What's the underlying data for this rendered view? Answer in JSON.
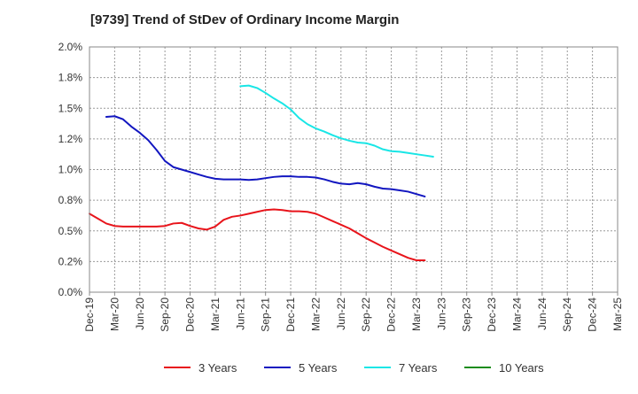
{
  "chart_data": {
    "type": "line",
    "title": "[9739]  Trend of StDev of Ordinary Income Margin",
    "xlabel": "",
    "ylabel": "",
    "ylim": [
      0,
      2.0
    ],
    "y_ticks": [
      "0.0%",
      "0.2%",
      "0.5%",
      "0.8%",
      "1.0%",
      "1.2%",
      "1.5%",
      "1.8%",
      "2.0%"
    ],
    "y_tick_values": [
      0,
      0.25,
      0.5,
      0.75,
      1.0,
      1.25,
      1.5,
      1.75,
      2.0
    ],
    "x_ticks": [
      "Dec-19",
      "Mar-20",
      "Jun-20",
      "Sep-20",
      "Dec-20",
      "Mar-21",
      "Jun-21",
      "Sep-21",
      "Dec-21",
      "Mar-22",
      "Jun-22",
      "Sep-22",
      "Dec-22",
      "Mar-23",
      "Jun-23",
      "Sep-23",
      "Dec-23",
      "Mar-24",
      "Jun-24",
      "Sep-24",
      "Dec-24",
      "Mar-25"
    ],
    "grid": true,
    "legend_position": "bottom",
    "series": [
      {
        "name": "3 Years",
        "color": "#e8141b",
        "start_index": 0,
        "values": [
          0.64,
          0.6,
          0.56,
          0.54,
          0.535,
          0.535,
          0.535,
          0.535,
          0.535,
          0.54,
          0.56,
          0.565,
          0.54,
          0.52,
          0.51,
          0.535,
          0.59,
          0.615,
          0.625,
          0.64,
          0.655,
          0.67,
          0.675,
          0.67,
          0.66,
          0.66,
          0.655,
          0.64,
          0.61,
          0.58,
          0.55,
          0.52,
          0.48,
          0.44,
          0.405,
          0.37,
          0.34,
          0.31,
          0.28,
          0.26,
          0.26
        ]
      },
      {
        "name": "5 Years",
        "color": "#1216c0",
        "start_index": 2,
        "values": [
          1.43,
          1.435,
          1.41,
          1.35,
          1.3,
          1.24,
          1.16,
          1.07,
          1.02,
          1.0,
          0.98,
          0.96,
          0.94,
          0.925,
          0.92,
          0.92,
          0.92,
          0.915,
          0.92,
          0.93,
          0.94,
          0.945,
          0.945,
          0.94,
          0.94,
          0.935,
          0.92,
          0.9,
          0.885,
          0.88,
          0.89,
          0.88,
          0.86,
          0.845,
          0.84,
          0.83,
          0.82,
          0.8,
          0.78
        ]
      },
      {
        "name": "7 Years",
        "color": "#19e6e6",
        "start_index": 18,
        "values": [
          1.68,
          1.685,
          1.665,
          1.625,
          1.58,
          1.54,
          1.49,
          1.42,
          1.37,
          1.335,
          1.31,
          1.28,
          1.255,
          1.235,
          1.22,
          1.215,
          1.195,
          1.165,
          1.15,
          1.145,
          1.135,
          1.125,
          1.115,
          1.105
        ]
      },
      {
        "name": "10 Years",
        "color": "#1a8c1a",
        "start_index": 0,
        "values": []
      }
    ]
  }
}
